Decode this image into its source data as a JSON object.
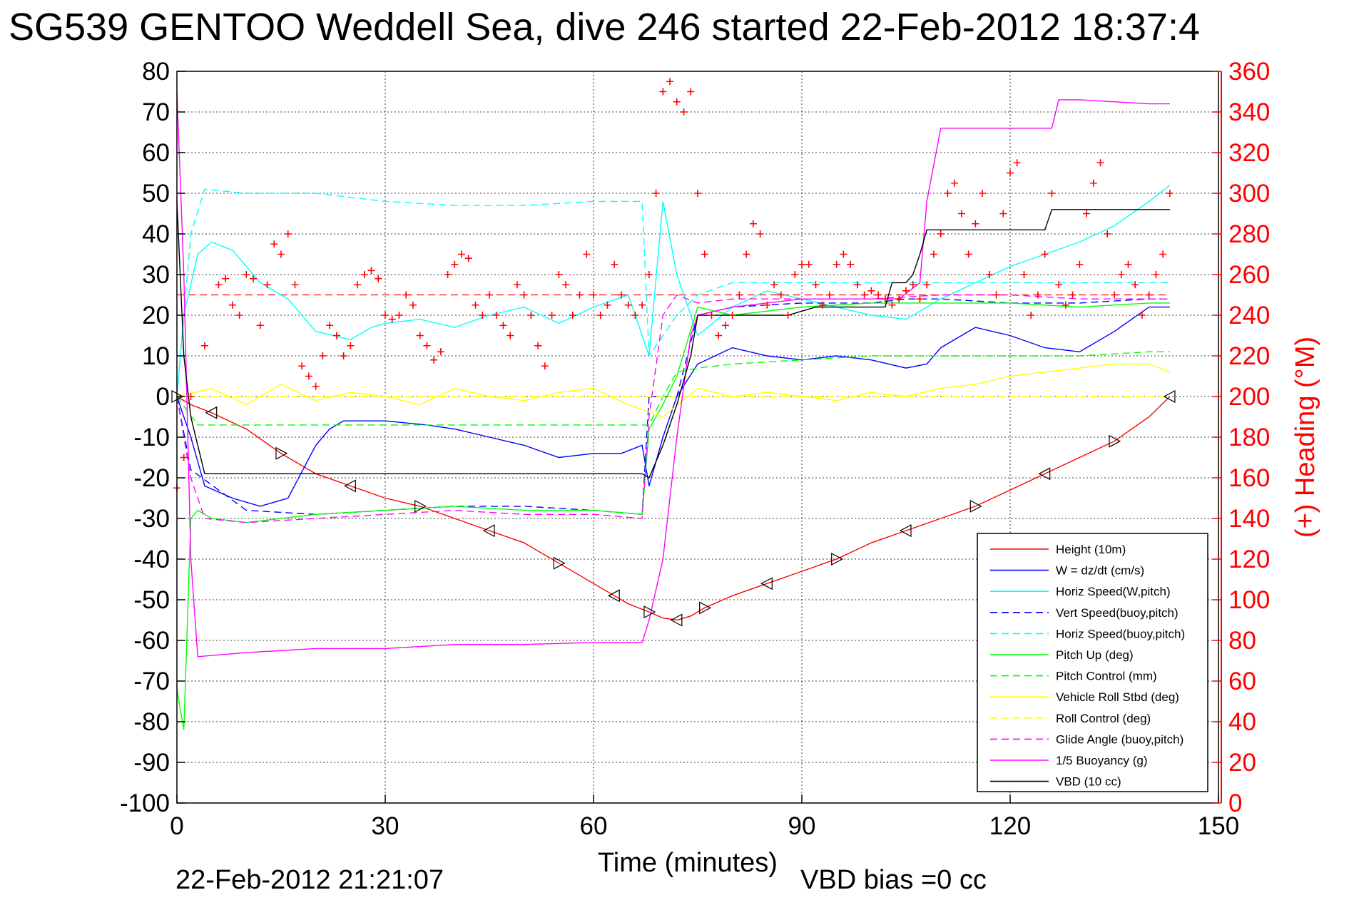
{
  "chart_data": {
    "type": "line",
    "title": "SG539 GENTOO Weddell Sea, dive 246 started 22-Feb-2012 18:37:4",
    "xlabel": "Time (minutes)",
    "ylabel": "",
    "y2label": "(+) Heading (°M)",
    "xlim": [
      0,
      150
    ],
    "ylim": [
      -100,
      80
    ],
    "y2lim": [
      0,
      360
    ],
    "xticks": [
      0,
      30,
      60,
      90,
      120,
      150
    ],
    "yticks": [
      80,
      70,
      60,
      50,
      40,
      30,
      20,
      10,
      0,
      -10,
      -20,
      -30,
      -40,
      -50,
      -60,
      -70,
      -80,
      -90,
      -100
    ],
    "y2ticks": [
      360,
      340,
      320,
      300,
      280,
      260,
      240,
      220,
      200,
      180,
      160,
      140,
      120,
      100,
      80,
      60,
      40,
      20,
      0
    ],
    "grid": true,
    "legend_position": "bottom-right",
    "footer_date": "22-Feb-2012 21:21:07",
    "footer_bias": "VBD bias =0 cc",
    "series": [
      {
        "name": "Height (10m)",
        "color": "#ff0000",
        "dash": false,
        "x": [
          0,
          2,
          5,
          10,
          15,
          20,
          25,
          30,
          35,
          40,
          45,
          50,
          55,
          60,
          63,
          65,
          68,
          70,
          72,
          74,
          76,
          80,
          85,
          90,
          95,
          100,
          105,
          110,
          115,
          120,
          125,
          130,
          135,
          140,
          143
        ],
        "y": [
          0,
          -2,
          -4,
          -8,
          -14,
          -19,
          -22,
          -25,
          -27,
          -30,
          -33,
          -36,
          -41,
          -46,
          -49,
          -51,
          -53,
          -54.5,
          -55,
          -54,
          -52,
          -49,
          -46,
          -43,
          -40,
          -36,
          -33,
          -30,
          -27,
          -23,
          -19,
          -15,
          -11,
          -5,
          0
        ]
      },
      {
        "name": "W = dz/dt (cm/s)",
        "color": "#0000ff",
        "dash": false,
        "x": [
          0,
          2,
          4,
          8,
          12,
          16,
          20,
          22,
          24,
          30,
          36,
          40,
          45,
          50,
          55,
          60,
          64,
          67,
          68,
          70,
          72,
          75,
          80,
          85,
          90,
          95,
          100,
          105,
          108,
          110,
          115,
          120,
          125,
          130,
          135,
          140,
          143
        ],
        "y": [
          0,
          -10,
          -22,
          -25,
          -27,
          -25,
          -12,
          -8,
          -6,
          -6,
          -7,
          -8,
          -10,
          -12,
          -15,
          -14,
          -14,
          -12,
          -22,
          -10,
          0,
          8,
          12,
          10,
          9,
          10,
          9,
          7,
          8,
          12,
          17,
          15,
          12,
          11,
          16,
          22,
          22
        ]
      },
      {
        "name": "Horiz Speed(W,pitch)",
        "color": "#00ffff",
        "dash": false,
        "x": [
          0,
          1,
          3,
          5,
          8,
          12,
          16,
          20,
          25,
          28,
          30,
          35,
          40,
          45,
          50,
          55,
          60,
          65,
          68,
          70,
          72,
          75,
          80,
          85,
          90,
          95,
          100,
          105,
          110,
          115,
          120,
          125,
          130,
          135,
          140,
          143
        ],
        "y": [
          0,
          20,
          35,
          38,
          36,
          28,
          24,
          16,
          14,
          17,
          18,
          19,
          17,
          20,
          22,
          18,
          22,
          25,
          10,
          48,
          30,
          15,
          22,
          26,
          24,
          22,
          20,
          19,
          24,
          28,
          32,
          35,
          38,
          42,
          48,
          52
        ]
      },
      {
        "name": "Vert Speed(buoy,pitch)",
        "color": "#0000ff",
        "dash": true,
        "x": [
          0,
          2,
          10,
          20,
          30,
          40,
          50,
          60,
          67,
          68,
          72,
          75,
          80,
          90,
          100,
          105,
          110,
          120,
          130,
          140,
          143
        ],
        "y": [
          0,
          -18,
          -28,
          -29,
          -28,
          -27,
          -27,
          -28,
          -29,
          0,
          0,
          20,
          22,
          23,
          23,
          24,
          24,
          23,
          23,
          24,
          24
        ]
      },
      {
        "name": "Horiz Speed(buoy,pitch)",
        "color": "#00ffff",
        "dash": true,
        "x": [
          0,
          2,
          4,
          10,
          20,
          30,
          40,
          50,
          60,
          67,
          68,
          72,
          75,
          80,
          90,
          100,
          110,
          120,
          130,
          140,
          143
        ],
        "y": [
          0,
          40,
          51,
          50,
          50,
          48,
          47,
          47,
          48,
          48,
          10,
          20,
          25,
          28,
          28,
          28,
          28,
          28,
          28,
          28,
          28
        ]
      },
      {
        "name": "Pitch Up (deg)",
        "color": "#00ff00",
        "dash": false,
        "x": [
          0,
          1,
          2,
          3,
          5,
          10,
          20,
          30,
          40,
          50,
          60,
          67,
          68,
          70,
          72,
          75,
          80,
          90,
          100,
          110,
          120,
          130,
          140,
          143
        ],
        "y": [
          -72,
          -82,
          -30,
          -28,
          -30,
          -31,
          -29,
          -28,
          -27,
          -28,
          -28,
          -29,
          -8,
          -2,
          5,
          22,
          20,
          22,
          23,
          23,
          23,
          22,
          23,
          23
        ]
      },
      {
        "name": "Pitch Control (mm)",
        "color": "#00ff00",
        "dash": true,
        "x": [
          0,
          3,
          20,
          40,
          60,
          67,
          68,
          70,
          72,
          75,
          80,
          90,
          100,
          110,
          120,
          130,
          140,
          143
        ],
        "y": [
          0,
          -7,
          -7,
          -7,
          -7,
          -7,
          -7,
          0,
          6,
          7,
          8,
          9,
          10,
          10,
          10,
          10,
          11,
          11
        ]
      },
      {
        "name": "Vehicle Roll Stbd (deg)",
        "color": "#ffff00",
        "dash": false,
        "x": [
          0,
          5,
          10,
          15,
          20,
          25,
          30,
          35,
          40,
          45,
          50,
          55,
          60,
          65,
          70,
          75,
          80,
          85,
          90,
          95,
          100,
          105,
          110,
          115,
          120,
          125,
          130,
          135,
          140,
          143
        ],
        "y": [
          0,
          2,
          -2,
          3,
          -1,
          1,
          0,
          -2,
          2,
          0,
          -1,
          1,
          2,
          -2,
          -5,
          2,
          0,
          1,
          0,
          -1,
          1,
          0,
          2,
          3,
          5,
          6,
          7,
          8,
          8,
          6
        ]
      },
      {
        "name": "Roll Control (deg)",
        "color": "#ffff00",
        "dash": true,
        "x": [
          0,
          10,
          20,
          30,
          40,
          50,
          60,
          70,
          80,
          90,
          100,
          110,
          120,
          130,
          140,
          143
        ],
        "y": [
          0,
          0,
          0,
          0,
          0,
          0,
          0,
          0,
          0,
          0,
          0,
          0,
          0,
          0,
          0,
          0
        ]
      },
      {
        "name": "Glide Angle (buoy,pitch)",
        "color": "#ff00ff",
        "dash": true,
        "x": [
          0,
          2,
          4,
          10,
          20,
          30,
          40,
          50,
          60,
          67,
          68,
          70,
          72,
          75,
          80,
          90,
          100,
          110,
          120,
          130,
          140,
          143
        ],
        "y": [
          0,
          -20,
          -30,
          -31,
          -30,
          -29,
          -28,
          -29,
          -29,
          -30,
          -5,
          20,
          25,
          23,
          24,
          24,
          24,
          25,
          25,
          24,
          24,
          24
        ]
      },
      {
        "name": "1/5 Buoyancy (g)",
        "color": "#ff00ff",
        "dash": false,
        "x": [
          0,
          1,
          2,
          3,
          10,
          20,
          30,
          40,
          50,
          60,
          67,
          68,
          70,
          72,
          74,
          75,
          80,
          90,
          100,
          104,
          107,
          108,
          110,
          120,
          126,
          127,
          130,
          140,
          143
        ],
        "y": [
          75,
          30,
          -40,
          -64,
          -63,
          -62,
          -62,
          -61,
          -61,
          -60.5,
          -60.5,
          -55,
          -40,
          -10,
          15,
          20,
          22,
          24,
          24,
          24,
          28,
          48,
          66,
          66,
          66,
          73,
          73,
          72,
          72
        ]
      },
      {
        "name": "VBD (10 cc)",
        "color": "#000000",
        "dash": false,
        "x": [
          0,
          1,
          2,
          3,
          4,
          20,
          40,
          60,
          67,
          68,
          70,
          72,
          74,
          75,
          80,
          88,
          92,
          95,
          102,
          103,
          105,
          106,
          107,
          108,
          120,
          125,
          126,
          127,
          130,
          140,
          143
        ],
        "y": [
          48,
          10,
          -5,
          -12,
          -19,
          -19,
          -19,
          -19,
          -19,
          -20,
          -12,
          -2,
          10,
          20,
          20,
          20,
          22,
          22,
          22,
          28,
          28,
          30,
          35,
          41,
          41,
          41,
          46,
          46,
          46,
          46,
          46
        ]
      }
    ],
    "heading_scatter": {
      "name": "(+) Heading (°M)",
      "color": "#ff0000",
      "x": [
        0,
        1,
        2,
        4,
        6,
        7,
        8,
        9,
        10,
        11,
        12,
        13,
        14,
        15,
        16,
        17,
        18,
        19,
        20,
        21,
        22,
        23,
        24,
        25,
        26,
        27,
        28,
        29,
        30,
        31,
        32,
        33,
        34,
        35,
        36,
        37,
        38,
        39,
        40,
        41,
        42,
        43,
        44,
        45,
        46,
        47,
        48,
        49,
        50,
        51,
        52,
        53,
        54,
        55,
        56,
        57,
        58,
        59,
        60,
        61,
        62,
        63,
        64,
        65,
        66,
        67,
        68,
        69,
        70,
        71,
        72,
        73,
        74,
        75,
        76,
        77,
        78,
        79,
        80,
        81,
        82,
        83,
        84,
        85,
        86,
        87,
        88,
        89,
        90,
        91,
        92,
        93,
        94,
        95,
        96,
        97,
        98,
        99,
        100,
        101,
        102,
        103,
        104,
        105,
        106,
        107,
        108,
        109,
        110,
        111,
        112,
        113,
        114,
        115,
        116,
        117,
        118,
        119,
        120,
        121,
        122,
        123,
        124,
        125,
        126,
        127,
        128,
        129,
        130,
        131,
        132,
        133,
        134,
        135,
        136,
        137,
        138,
        139,
        140,
        141,
        142,
        143
      ],
      "y": [
        155,
        170,
        200,
        225,
        255,
        258,
        245,
        240,
        260,
        258,
        235,
        255,
        275,
        270,
        280,
        255,
        215,
        210,
        205,
        220,
        235,
        230,
        220,
        225,
        255,
        260,
        262,
        258,
        240,
        238,
        240,
        250,
        245,
        230,
        225,
        218,
        222,
        260,
        265,
        270,
        268,
        245,
        240,
        250,
        240,
        235,
        230,
        255,
        250,
        240,
        225,
        215,
        240,
        260,
        255,
        240,
        250,
        270,
        250,
        240,
        245,
        265,
        250,
        245,
        240,
        245,
        260,
        300,
        350,
        355,
        345,
        340,
        350,
        300,
        270,
        240,
        230,
        235,
        240,
        250,
        270,
        285,
        280,
        245,
        255,
        250,
        240,
        260,
        265,
        265,
        255,
        245,
        250,
        265,
        270,
        265,
        255,
        250,
        252,
        250,
        248,
        245,
        248,
        252,
        255,
        248,
        255,
        270,
        280,
        300,
        305,
        290,
        270,
        285,
        300,
        260,
        250,
        290,
        310,
        315,
        260,
        240,
        250,
        270,
        300,
        255,
        245,
        250,
        265,
        290,
        305,
        315,
        280,
        250,
        260,
        265,
        255,
        240,
        250,
        260,
        270,
        300
      ]
    }
  }
}
